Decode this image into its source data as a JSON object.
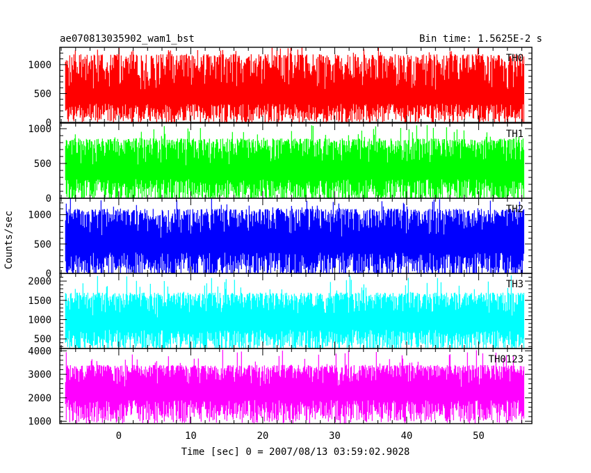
{
  "header": {
    "title": "ae070813035902_wam1_bst",
    "bin_time": "Bin time: 1.5625E-2 s"
  },
  "chart_data": {
    "type": "line",
    "x": {
      "min": -7.4,
      "max": 56.3,
      "xlim": [
        -8.2,
        57.4
      ],
      "ticks": [
        0,
        10,
        20,
        30,
        40,
        50
      ],
      "tick_labels": [
        "0",
        "10",
        "20",
        "30",
        "40",
        "50"
      ]
    },
    "xlabel": "Time [sec] 0 = 2007/08/13 03:59:02.9028",
    "ylabel": "Counts/sec",
    "panels": [
      {
        "name": "TH0",
        "color": "#ff0000",
        "ylim": [
          0,
          1300
        ],
        "yticks": [
          0,
          500,
          1000
        ],
        "ytick_labels": [
          "0",
          "500",
          "1000"
        ],
        "mean": 500,
        "low": 150,
        "high": 1180,
        "min": 20,
        "max": 1300
      },
      {
        "name": "TH1",
        "color": "#00ff00",
        "ylim": [
          0,
          1080
        ],
        "yticks": [
          0,
          500,
          1000
        ],
        "ytick_labels": [
          "0",
          "500",
          "1000"
        ],
        "mean": 450,
        "low": 100,
        "high": 860,
        "min": 10,
        "max": 1060
      },
      {
        "name": "TH2",
        "color": "#0000ff",
        "ylim": [
          0,
          1280
        ],
        "yticks": [
          0,
          500,
          1000
        ],
        "ytick_labels": [
          "0",
          "500",
          "1000"
        ],
        "mean": 600,
        "low": 110,
        "high": 1100,
        "min": 20,
        "max": 1280
      },
      {
        "name": "TH3",
        "color": "#00ffff",
        "ylim": [
          250,
          2200
        ],
        "yticks": [
          500,
          1000,
          1500,
          2000
        ],
        "ytick_labels": [
          "500",
          "1000",
          "1500",
          "2000"
        ],
        "mean": 1050,
        "low": 420,
        "high": 1700,
        "min": 300,
        "max": 2150
      },
      {
        "name": "TH0123",
        "color": "#ff00ff",
        "ylim": [
          900,
          4100
        ],
        "yticks": [
          1000,
          2000,
          3000,
          4000
        ],
        "ytick_labels": [
          "1000",
          "2000",
          "3000",
          "4000"
        ],
        "mean": 2400,
        "low": 1400,
        "high": 3400,
        "min": 950,
        "max": 4050
      }
    ]
  }
}
